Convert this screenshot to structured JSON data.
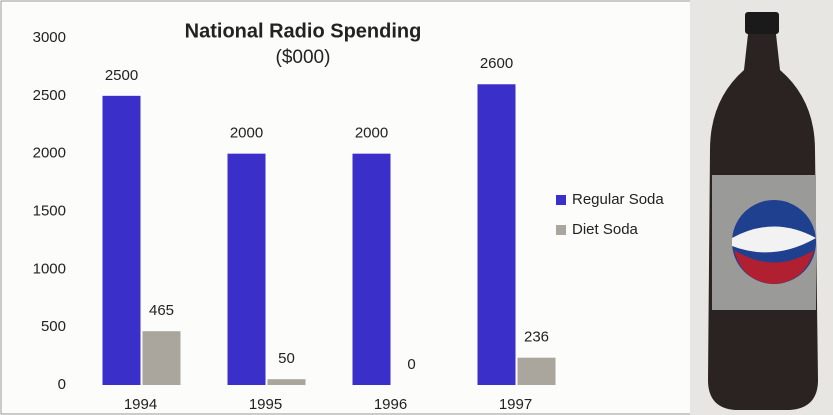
{
  "chart_data": {
    "type": "bar",
    "title": "National Radio Spending",
    "subtitle": "($000)",
    "categories": [
      "1994",
      "1995",
      "1996",
      "1997"
    ],
    "series": [
      {
        "name": "Regular Soda",
        "color": "#3b2fc9",
        "values": [
          2500,
          2000,
          2000,
          2600
        ]
      },
      {
        "name": "Diet Soda",
        "color": "#aaa59d",
        "values": [
          465,
          50,
          0,
          236
        ]
      }
    ],
    "ylim": [
      0,
      3000
    ],
    "yticks": [
      0,
      500,
      1000,
      1500,
      2000,
      2500,
      3000
    ],
    "grid": false,
    "legend": "right"
  }
}
